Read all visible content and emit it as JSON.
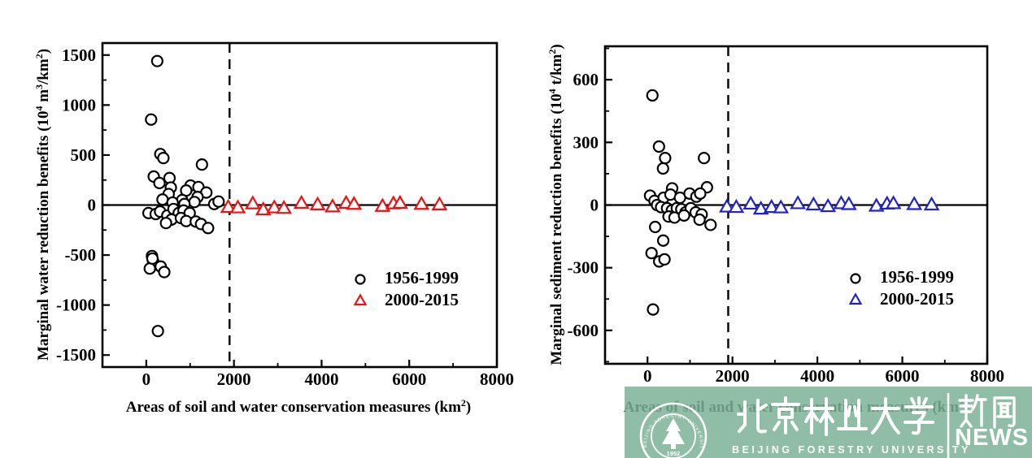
{
  "watermark": {
    "band_color": "#7BB296",
    "university_cn": "北京林业大学",
    "university_en": "BEIJING FORESTRY UNIVERSITY",
    "emblem_text": "BEIJING FORESTRY UNIVERSITY",
    "emblem_year": "1952",
    "news_cn": "新闻",
    "news_en": "NEWS"
  },
  "chart_data": [
    {
      "type": "scatter",
      "title": "",
      "xlabel": "Areas of soil and water conservation measures (km^2)",
      "ylabel": "Marginal water reduction benefits (10^4 m^3/km^2)",
      "xlim": [
        -1000,
        8000
      ],
      "ylim": [
        -1620,
        1620
      ],
      "xticks": [
        0,
        2000,
        4000,
        6000,
        8000
      ],
      "yticks": [
        -1500,
        -1000,
        -500,
        0,
        500,
        1000,
        1500
      ],
      "x_minor": [
        1000,
        3000,
        5000,
        7000
      ],
      "y_minor": [
        -1250,
        -750,
        -250,
        250,
        750,
        1250
      ],
      "grid": false,
      "zero_line": true,
      "dashed_line_x": 1900,
      "legend_position": "lower right",
      "series": [
        {
          "name": "1956-1999",
          "marker": "circle",
          "color": "#000000",
          "points": [
            [
              250,
              1440
            ],
            [
              110,
              855
            ],
            [
              320,
              510
            ],
            [
              390,
              470
            ],
            [
              1270,
              405
            ],
            [
              170,
              285
            ],
            [
              530,
              270
            ],
            [
              300,
              220
            ],
            [
              560,
              175
            ],
            [
              1010,
              195
            ],
            [
              1190,
              180
            ],
            [
              510,
              110
            ],
            [
              910,
              145
            ],
            [
              1370,
              125
            ],
            [
              820,
              50
            ],
            [
              1170,
              80
            ],
            [
              370,
              55
            ],
            [
              600,
              25
            ],
            [
              1100,
              30
            ],
            [
              1550,
              10
            ],
            [
              1650,
              35
            ],
            [
              870,
              10
            ],
            [
              50,
              -80
            ],
            [
              215,
              -90
            ],
            [
              315,
              -65
            ],
            [
              480,
              -105
            ],
            [
              620,
              -40
            ],
            [
              740,
              -80
            ],
            [
              850,
              -55
            ],
            [
              990,
              -80
            ],
            [
              575,
              -145
            ],
            [
              450,
              -180
            ],
            [
              790,
              -130
            ],
            [
              910,
              -160
            ],
            [
              1130,
              -165
            ],
            [
              1250,
              -190
            ],
            [
              1410,
              -230
            ],
            [
              130,
              -510
            ],
            [
              155,
              -560
            ],
            [
              80,
              -635
            ],
            [
              140,
              -535
            ],
            [
              330,
              -615
            ],
            [
              410,
              -670
            ],
            [
              265,
              -1260
            ]
          ]
        },
        {
          "name": "2000-2015",
          "marker": "triangle",
          "color": "#EE1111",
          "points": [
            [
              1870,
              -20
            ],
            [
              2090,
              -25
            ],
            [
              2430,
              15
            ],
            [
              2670,
              -45
            ],
            [
              2920,
              -25
            ],
            [
              3140,
              -30
            ],
            [
              3540,
              20
            ],
            [
              3910,
              5
            ],
            [
              4250,
              -15
            ],
            [
              4560,
              20
            ],
            [
              4740,
              10
            ],
            [
              5390,
              -10
            ],
            [
              5640,
              15
            ],
            [
              5790,
              20
            ],
            [
              6280,
              10
            ],
            [
              6690,
              5
            ]
          ]
        }
      ]
    },
    {
      "type": "scatter",
      "title": "",
      "xlabel": "Areas of soil and water conservation measures (km^2)",
      "ylabel": "Marginal sediment reduction benefits (10^4 t/km^2)",
      "xlim": [
        -1000,
        8000
      ],
      "ylim": [
        -760,
        760
      ],
      "xticks": [
        0,
        2000,
        4000,
        6000,
        8000
      ],
      "yticks": [
        -600,
        -300,
        0,
        300,
        600
      ],
      "x_minor": [
        1000,
        3000,
        5000,
        7000
      ],
      "y_minor": [
        -750,
        -450,
        -150,
        150,
        450,
        750
      ],
      "grid": false,
      "zero_line": true,
      "dashed_line_x": 1900,
      "legend_position": "lower right",
      "series": [
        {
          "name": "1956-1999",
          "marker": "circle",
          "color": "#000000",
          "points": [
            [
              115,
              525
            ],
            [
              270,
              280
            ],
            [
              415,
              225
            ],
            [
              365,
              175
            ],
            [
              1330,
              225
            ],
            [
              580,
              80
            ],
            [
              1400,
              85
            ],
            [
              60,
              45
            ],
            [
              165,
              20
            ],
            [
              380,
              35
            ],
            [
              540,
              50
            ],
            [
              765,
              35
            ],
            [
              990,
              55
            ],
            [
              1150,
              40
            ],
            [
              1240,
              55
            ],
            [
              225,
              0
            ],
            [
              320,
              -10
            ],
            [
              460,
              -15
            ],
            [
              575,
              -25
            ],
            [
              690,
              -15
            ],
            [
              795,
              -20
            ],
            [
              895,
              -35
            ],
            [
              1020,
              -15
            ],
            [
              1135,
              -35
            ],
            [
              1275,
              -45
            ],
            [
              495,
              -55
            ],
            [
              635,
              -60
            ],
            [
              860,
              -50
            ],
            [
              1225,
              -70
            ],
            [
              1485,
              -95
            ],
            [
              180,
              -105
            ],
            [
              370,
              -170
            ],
            [
              95,
              -230
            ],
            [
              275,
              -270
            ],
            [
              400,
              -260
            ],
            [
              130,
              -500
            ]
          ]
        },
        {
          "name": "2000-2015",
          "marker": "triangle",
          "color": "#2222CC",
          "points": [
            [
              1870,
              -8
            ],
            [
              2090,
              -10
            ],
            [
              2430,
              6
            ],
            [
              2670,
              -18
            ],
            [
              2920,
              -10
            ],
            [
              3140,
              -12
            ],
            [
              3540,
              8
            ],
            [
              3910,
              2
            ],
            [
              4250,
              -6
            ],
            [
              4560,
              8
            ],
            [
              4740,
              4
            ],
            [
              5390,
              -4
            ],
            [
              5640,
              6
            ],
            [
              5790,
              8
            ],
            [
              6280,
              4
            ],
            [
              6690,
              2
            ]
          ]
        }
      ]
    }
  ]
}
